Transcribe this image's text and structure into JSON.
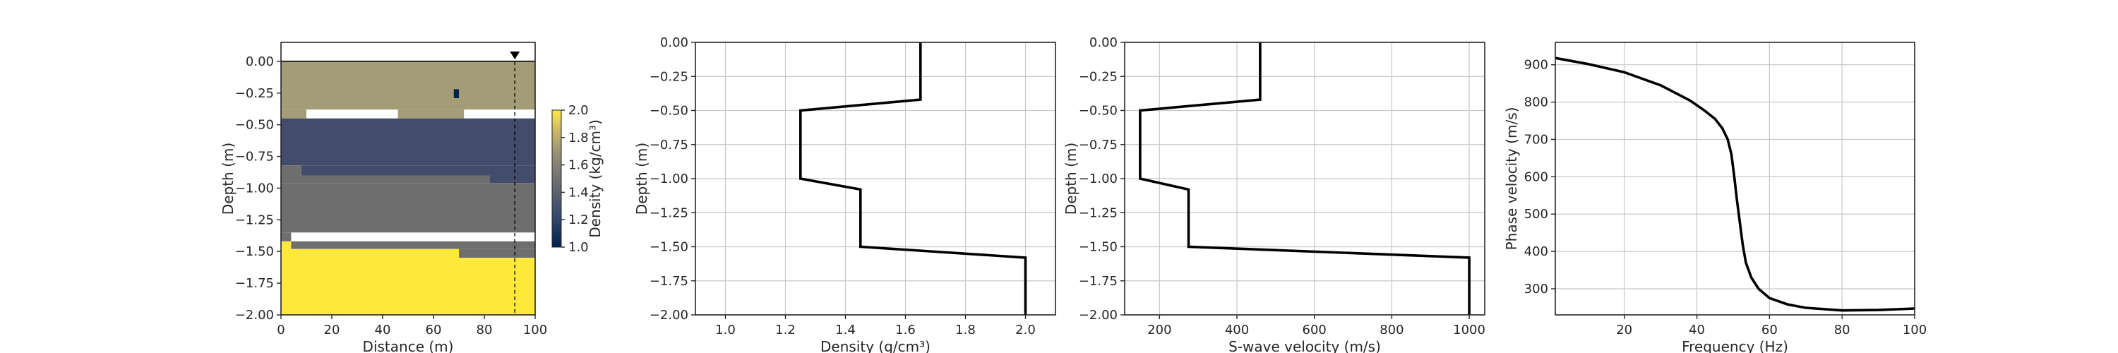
{
  "chart_data": [
    {
      "type": "heatmap",
      "xlabel": "Distance (m)",
      "ylabel": "Depth (m)",
      "xlim": [
        0,
        100
      ],
      "ylim": [
        -2.0,
        0.15
      ],
      "xticks": [
        "0",
        "20",
        "40",
        "60",
        "80",
        "100"
      ],
      "yticks": [
        "0.00",
        "−0.25",
        "−0.50",
        "−0.75",
        "−1.00",
        "−1.25",
        "−1.50",
        "−1.75",
        "−2.00"
      ],
      "grid": false,
      "receiver_marker_x": 92,
      "colorbar": {
        "label": "Density (kg/cm³)",
        "range": [
          1.0,
          2.0
        ],
        "ticks": [
          "1.0",
          "1.2",
          "1.4",
          "1.6",
          "1.8",
          "2.0"
        ],
        "colormap": "cividis"
      },
      "layers": [
        {
          "density": 1.65,
          "color": "#A39C77",
          "segments": [
            [
              0,
              100,
              0.0,
              -0.38
            ],
            [
              0,
              10,
              -0.38,
              -0.45
            ],
            [
              46,
              72,
              -0.38,
              -0.45
            ]
          ]
        },
        {
          "density": 1.25,
          "color": "#434D6B",
          "segments": [
            [
              10,
              46,
              -0.45,
              -0.45
            ],
            [
              72,
              100,
              -0.45,
              -0.45
            ],
            [
              0,
              100,
              -0.45,
              -0.82
            ],
            [
              8,
              100,
              -0.82,
              -0.9
            ],
            [
              82,
              100,
              -0.9,
              -0.96
            ]
          ]
        },
        {
          "density": 1.45,
          "color": "#6E6E6E",
          "segments": [
            [
              0,
              8,
              -0.82,
              -0.9
            ],
            [
              0,
              82,
              -0.9,
              -0.96
            ],
            [
              0,
              100,
              -0.96,
              -1.35
            ],
            [
              0,
              4,
              -1.35,
              -1.42
            ],
            [
              0,
              100,
              -1.42,
              -1.48
            ],
            [
              70,
              100,
              -1.48,
              -1.55
            ]
          ]
        },
        {
          "density": 2.0,
          "color": "#FDE93A",
          "segments": [
            [
              0,
              100,
              -1.55,
              -2.0
            ],
            [
              0,
              70,
              -1.48,
              -1.55
            ],
            [
              0,
              4,
              -1.42,
              -1.48
            ]
          ]
        },
        {
          "density": 1.0,
          "color": "#00204D",
          "segments": [
            [
              68,
              70,
              -0.22,
              -0.29
            ]
          ]
        }
      ]
    },
    {
      "type": "line",
      "xlabel": "Density (g/cm³)",
      "ylabel": "Depth (m)",
      "xlim": [
        0.9,
        2.1
      ],
      "ylim": [
        -2.0,
        0.0
      ],
      "xticks": [
        1.0,
        1.2,
        1.4,
        1.6,
        1.8,
        2.0
      ],
      "xtick_labels": [
        "1.0",
        "1.2",
        "1.4",
        "1.6",
        "1.8",
        "2.0"
      ],
      "yticks": [
        "0.00",
        "−0.25",
        "−0.50",
        "−0.75",
        "−1.00",
        "−1.25",
        "−1.50",
        "−1.75",
        "−2.00"
      ],
      "grid": true,
      "points": [
        [
          1.65,
          0.0
        ],
        [
          1.65,
          -0.42
        ],
        [
          1.25,
          -0.5
        ],
        [
          1.25,
          -1.0
        ],
        [
          1.45,
          -1.08
        ],
        [
          1.45,
          -1.5
        ],
        [
          2.0,
          -1.58
        ],
        [
          2.0,
          -2.0
        ]
      ]
    },
    {
      "type": "line",
      "xlabel": "S-wave velocity (m/s)",
      "ylabel": "Depth (m)",
      "xlim": [
        110,
        1040
      ],
      "ylim": [
        -2.0,
        0.0
      ],
      "xticks": [
        200,
        400,
        600,
        800,
        1000
      ],
      "xtick_labels": [
        "200",
        "400",
        "600",
        "800",
        "1000"
      ],
      "yticks": [
        "0.00",
        "−0.25",
        "−0.50",
        "−0.75",
        "−1.00",
        "−1.25",
        "−1.50",
        "−1.75",
        "−2.00"
      ],
      "grid": true,
      "points": [
        [
          460,
          0.0
        ],
        [
          460,
          -0.42
        ],
        [
          150,
          -0.5
        ],
        [
          150,
          -1.0
        ],
        [
          275,
          -1.08
        ],
        [
          275,
          -1.5
        ],
        [
          1000,
          -1.58
        ],
        [
          1000,
          -2.0
        ]
      ]
    },
    {
      "type": "line",
      "xlabel": "Frequency (Hz)",
      "ylabel": "Phase velocity (m/s)",
      "xlim": [
        1,
        100
      ],
      "ylim": [
        230,
        960
      ],
      "xticks": [
        20,
        40,
        60,
        80,
        100
      ],
      "xtick_labels": [
        "20",
        "40",
        "60",
        "80",
        "100"
      ],
      "yticks": [
        300,
        400,
        500,
        600,
        700,
        800,
        900
      ],
      "ytick_labels": [
        "300",
        "400",
        "500",
        "600",
        "700",
        "800",
        "900"
      ],
      "grid": true,
      "points": [
        [
          1,
          918
        ],
        [
          10,
          902
        ],
        [
          20,
          880
        ],
        [
          30,
          845
        ],
        [
          38,
          805
        ],
        [
          42,
          778
        ],
        [
          45,
          755
        ],
        [
          47,
          730
        ],
        [
          48.5,
          700
        ],
        [
          49.5,
          660
        ],
        [
          50.3,
          600
        ],
        [
          51,
          540
        ],
        [
          51.8,
          480
        ],
        [
          52.6,
          420
        ],
        [
          53.5,
          370
        ],
        [
          55,
          330
        ],
        [
          57,
          300
        ],
        [
          60,
          275
        ],
        [
          65,
          258
        ],
        [
          70,
          249
        ],
        [
          80,
          242
        ],
        [
          90,
          243
        ],
        [
          100,
          247
        ]
      ]
    }
  ]
}
